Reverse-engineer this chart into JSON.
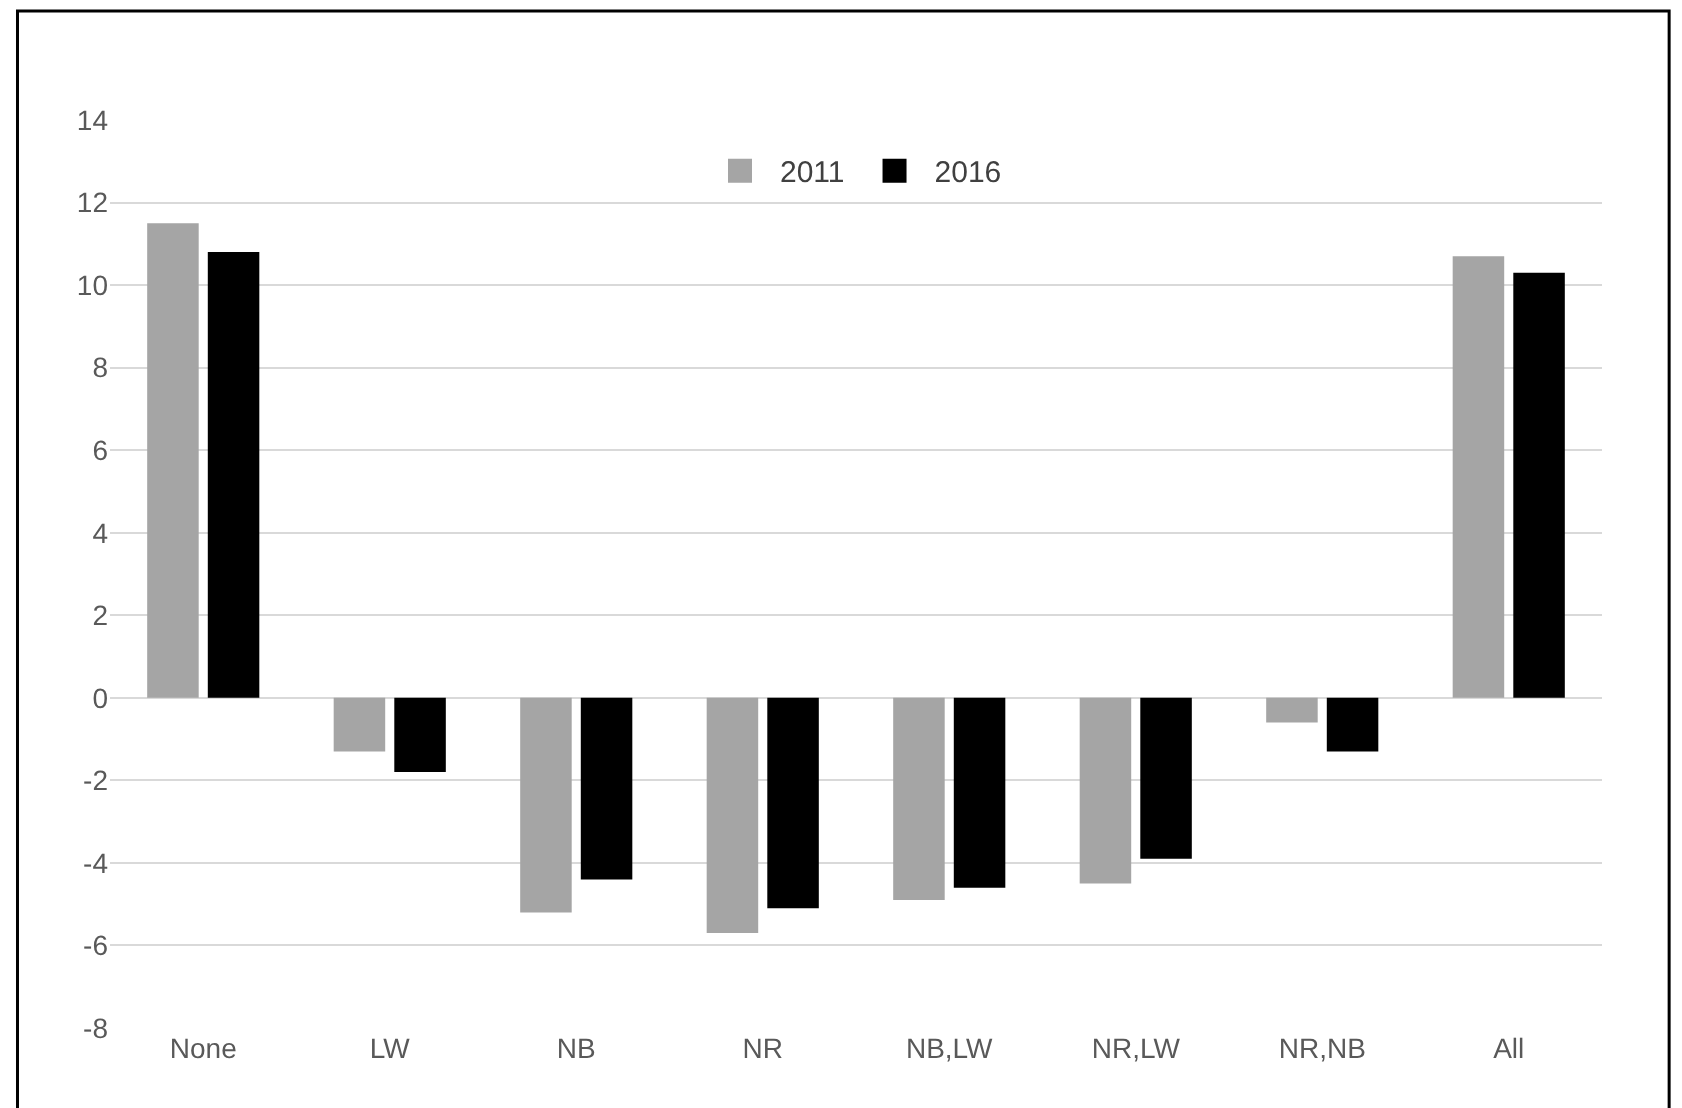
{
  "chart_data": {
    "type": "bar",
    "categories": [
      "None",
      "LW",
      "NB",
      "NR",
      "NB,LW",
      "NR,LW",
      "NR,NB",
      "All"
    ],
    "series": [
      {
        "name": "2011",
        "color": "#a5a5a5",
        "values": [
          11.5,
          -1.3,
          -5.2,
          -5.7,
          -4.9,
          -4.5,
          -0.6,
          10.7
        ]
      },
      {
        "name": "2016",
        "color": "#000000",
        "values": [
          10.8,
          -1.8,
          -4.4,
          -5.1,
          -4.6,
          -3.9,
          -1.3,
          10.3
        ]
      }
    ],
    "ylim": [
      -8,
      14
    ],
    "yticks": [
      -8,
      -6,
      -4,
      -2,
      0,
      2,
      4,
      6,
      8,
      10,
      12,
      14
    ],
    "grid": "y",
    "legend": "top"
  }
}
